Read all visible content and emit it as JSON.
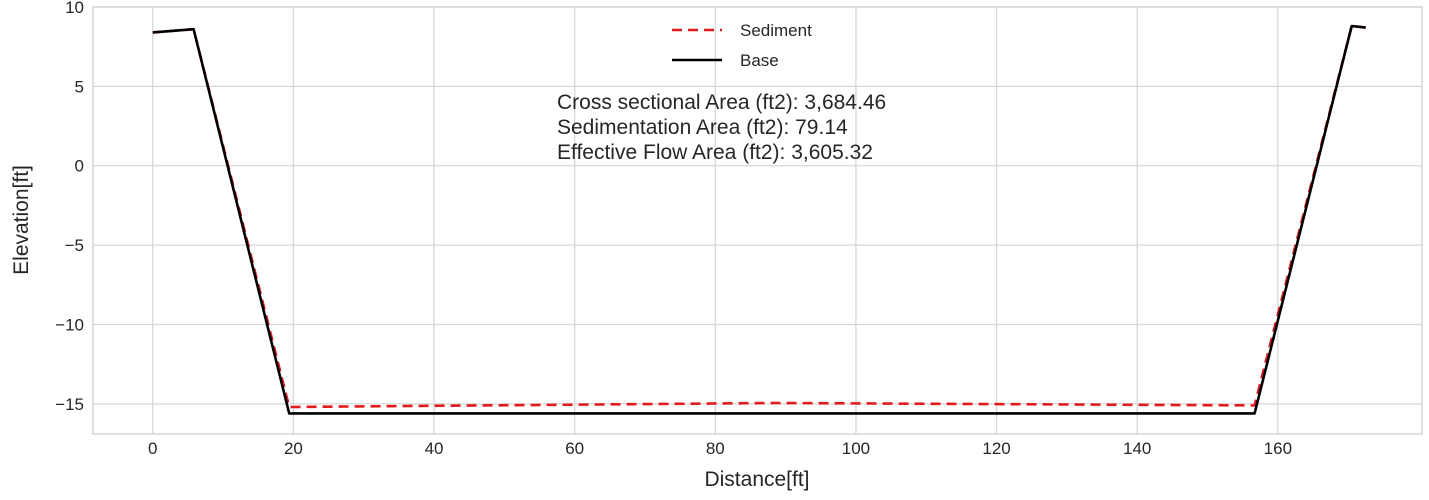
{
  "chart_data": {
    "type": "line",
    "title": "",
    "xlabel": "Distance[ft]",
    "ylabel": "Elevation[ft]",
    "xlim": [
      -8.5,
      180.5
    ],
    "ylim": [
      -16.9,
      10
    ],
    "x_ticks": [
      0,
      20,
      40,
      60,
      80,
      100,
      120,
      140,
      160
    ],
    "x_tick_labels": [
      "0",
      "20",
      "40",
      "60",
      "80",
      "100",
      "120",
      "140",
      "160"
    ],
    "y_ticks": [
      10,
      5,
      0,
      -5,
      -10,
      -15
    ],
    "y_tick_labels": [
      "10",
      "5",
      "0",
      "−5",
      "−10",
      "−15"
    ],
    "grid": true,
    "legend_position": "top-center",
    "series": [
      {
        "name": "Sediment",
        "color": "#e31a1c",
        "style": "dashed",
        "points": [
          [
            0,
            8.4
          ],
          [
            5.8,
            8.6
          ],
          [
            19.4,
            -15.2
          ],
          [
            88.6,
            -14.95
          ],
          [
            156.7,
            -15.1
          ],
          [
            170.5,
            8.8
          ],
          [
            172.5,
            8.7
          ]
        ]
      },
      {
        "name": "Base",
        "color": "#000000",
        "style": "solid",
        "points": [
          [
            0,
            8.4
          ],
          [
            5.8,
            8.6
          ],
          [
            19.4,
            -15.6
          ],
          [
            156.7,
            -15.6
          ],
          [
            170.5,
            8.8
          ],
          [
            172.5,
            8.7
          ]
        ]
      }
    ],
    "annotations": [
      "Cross sectional Area (ft2): 3,684.46",
      "Sedimentation Area (ft2): 79.14",
      "Effective Flow Area (ft2): 3,605.32"
    ]
  }
}
